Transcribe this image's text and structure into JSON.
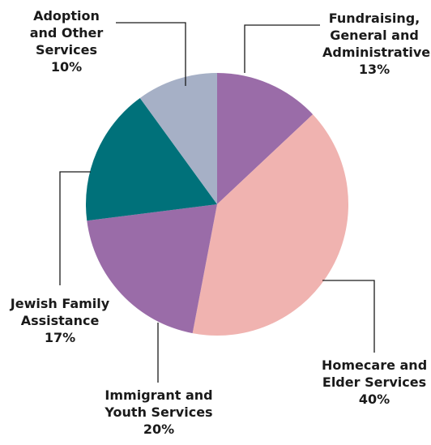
{
  "chart_data": {
    "type": "pie",
    "slices": [
      {
        "label_lines": [
          "Fundraising,",
          "General and",
          "Administrative"
        ],
        "value": 13,
        "pct": "13%",
        "color": "#9a6ca8"
      },
      {
        "label_lines": [
          "Homecare and",
          "Elder Services"
        ],
        "value": 40,
        "pct": "40%",
        "color": "#f0b3b0"
      },
      {
        "label_lines": [
          "Immigrant and",
          "Youth Services"
        ],
        "value": 20,
        "pct": "20%",
        "color": "#9a6ca8"
      },
      {
        "label_lines": [
          "Jewish Family",
          "Assistance"
        ],
        "value": 17,
        "pct": "17%",
        "color": "#00717a"
      },
      {
        "label_lines": [
          "Adoption",
          "and Other",
          "Services"
        ],
        "value": 10,
        "pct": "10%",
        "color": "#a6b0c6"
      }
    ],
    "start_angle": "12 o'clock",
    "direction": "clockwise",
    "legend": "none (callout labels)"
  }
}
